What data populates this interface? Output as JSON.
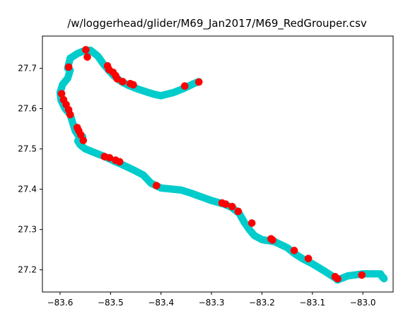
{
  "chart_data": {
    "type": "scatter",
    "title": "/w/loggerhead/glider/M69_Jan2017/M69_RedGrouper.csv",
    "xlabel": "",
    "ylabel": "",
    "xlim": [
      -83.635,
      -82.94
    ],
    "ylim": [
      27.145,
      27.78
    ],
    "xticks": [
      -83.6,
      -83.5,
      -83.4,
      -83.3,
      -83.2,
      -83.1,
      -83.0
    ],
    "xtick_labels": [
      "−83.6",
      "−83.5",
      "−83.4",
      "−83.3",
      "−83.2",
      "−83.1",
      "−83.0"
    ],
    "yticks": [
      27.2,
      27.3,
      27.4,
      27.5,
      27.6,
      27.7
    ],
    "ytick_labels": [
      "27.2",
      "27.3",
      "27.4",
      "27.5",
      "27.6",
      "27.7"
    ],
    "grid": false,
    "series": [
      {
        "role": "track",
        "color": "#00cccc",
        "x": [
          -83.325,
          -83.335,
          -83.355,
          -83.375,
          -83.4,
          -83.415,
          -83.43,
          -83.445,
          -83.465,
          -83.48,
          -83.495,
          -83.505,
          -83.515,
          -83.525,
          -83.54,
          -83.555,
          -83.565,
          -83.58,
          -83.585,
          -83.58,
          -83.585,
          -83.595,
          -83.6,
          -83.598,
          -83.59,
          -83.58,
          -83.575,
          -83.57,
          -83.565,
          -83.56,
          -83.555,
          -83.56,
          -83.565,
          -83.56,
          -83.55,
          -83.53,
          -83.51,
          -83.49,
          -83.475,
          -83.45,
          -83.435,
          -83.42,
          -83.4,
          -83.36,
          -83.34,
          -83.3,
          -83.275,
          -83.26,
          -83.245,
          -83.235,
          -83.225,
          -83.215,
          -83.2,
          -83.175,
          -83.15,
          -83.135,
          -83.12,
          -83.1,
          -83.08,
          -83.065,
          -83.055,
          -83.05,
          -83.03,
          -83.0,
          -82.98,
          -82.965,
          -82.962,
          -82.958,
          -82.96
        ],
        "y": [
          27.667,
          27.662,
          27.65,
          27.64,
          27.632,
          27.636,
          27.642,
          27.648,
          27.658,
          27.668,
          27.683,
          27.697,
          27.712,
          27.73,
          27.745,
          27.742,
          27.737,
          27.725,
          27.7,
          27.695,
          27.675,
          27.66,
          27.64,
          27.62,
          27.6,
          27.585,
          27.565,
          27.545,
          27.535,
          27.53,
          27.53,
          27.525,
          27.52,
          27.51,
          27.5,
          27.49,
          27.48,
          27.468,
          27.46,
          27.445,
          27.435,
          27.415,
          27.403,
          27.398,
          27.39,
          27.372,
          27.363,
          27.355,
          27.34,
          27.318,
          27.3,
          27.285,
          27.275,
          27.27,
          27.255,
          27.24,
          27.228,
          27.215,
          27.2,
          27.188,
          27.18,
          27.175,
          27.185,
          27.19,
          27.19,
          27.19,
          27.183,
          27.178,
          27.182
        ]
      },
      {
        "role": "detections",
        "color": "#ff0000",
        "x": [
          -83.549,
          -83.546,
          -83.583,
          -83.506,
          -83.503,
          -83.495,
          -83.49,
          -83.487,
          -83.476,
          -83.461,
          -83.455,
          -83.353,
          -83.325,
          -83.597,
          -83.593,
          -83.588,
          -83.583,
          -83.58,
          -83.566,
          -83.563,
          -83.559,
          -83.554,
          -83.512,
          -83.502,
          -83.49,
          -83.482,
          -83.409,
          -83.279,
          -83.272,
          -83.259,
          -83.247,
          -83.22,
          -83.182,
          -83.179,
          -83.136,
          -83.108,
          -83.055,
          -83.05,
          -83.002
        ],
        "y": [
          27.746,
          27.728,
          27.703,
          27.706,
          27.697,
          27.69,
          27.682,
          27.674,
          27.667,
          27.662,
          27.659,
          27.656,
          27.666,
          27.637,
          27.622,
          27.61,
          27.597,
          27.585,
          27.553,
          27.545,
          27.535,
          27.521,
          27.481,
          27.478,
          27.472,
          27.468,
          27.409,
          27.366,
          27.363,
          27.357,
          27.345,
          27.316,
          27.277,
          27.274,
          27.248,
          27.228,
          27.183,
          27.178,
          27.187
        ]
      }
    ]
  }
}
